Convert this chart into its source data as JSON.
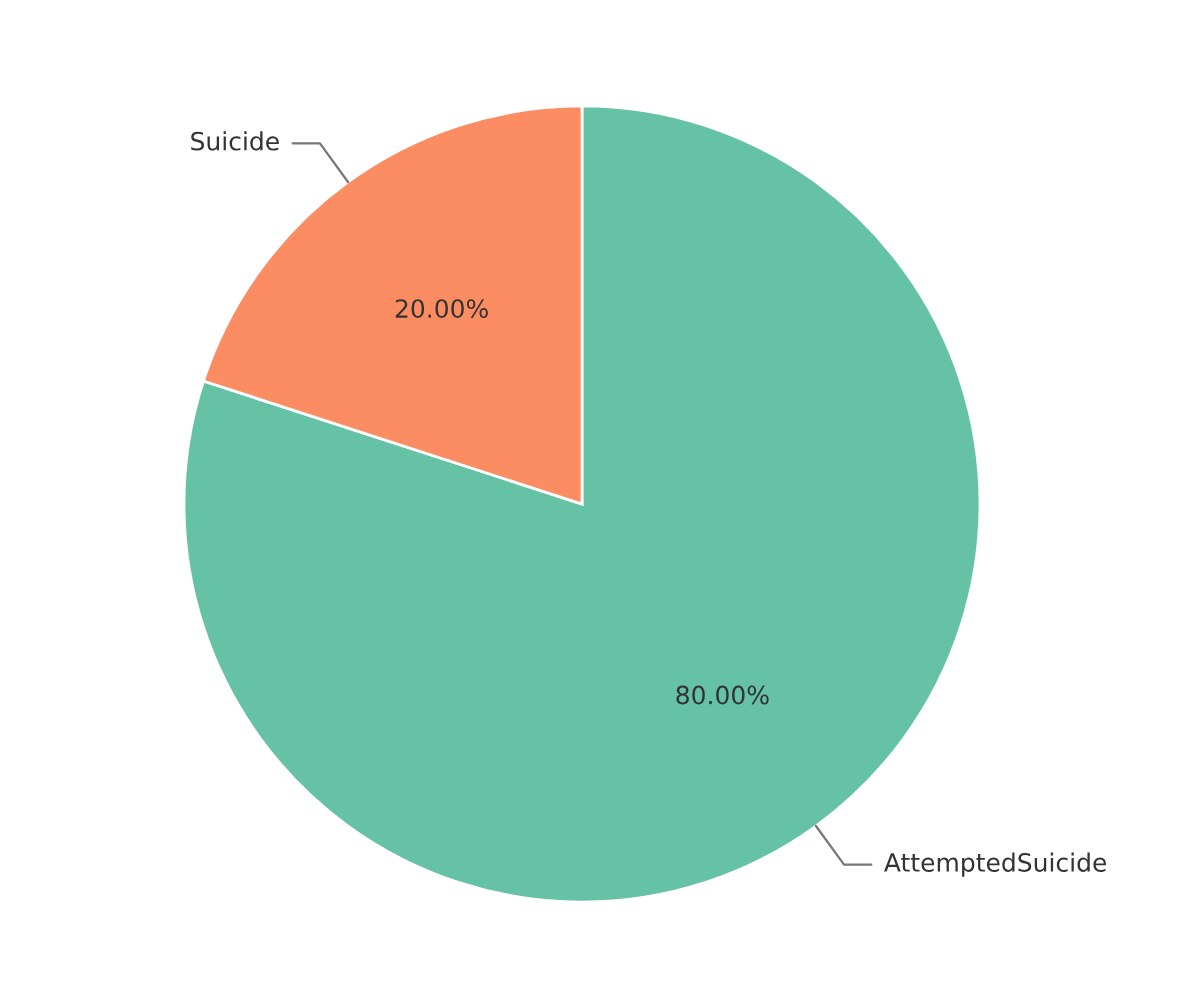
{
  "chart_data": {
    "type": "pie",
    "categories": [
      "AttemptedSuicide",
      "Suicide"
    ],
    "values": [
      80,
      20
    ],
    "colors": [
      "#66c2a5",
      "#fc8d62"
    ],
    "value_labels": [
      "80.00%",
      "20.00%"
    ]
  }
}
